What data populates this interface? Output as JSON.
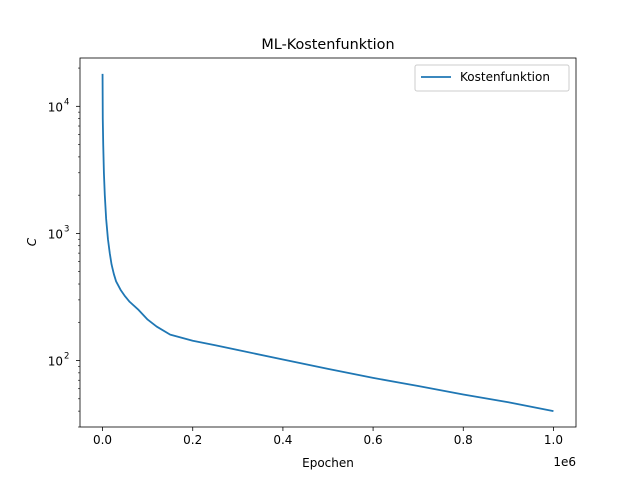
{
  "chart_data": {
    "type": "line",
    "title": "ML-Kostenfunktion",
    "xlabel": "Epochen",
    "ylabel": "C",
    "x_offset_label": "1e6",
    "y_scale": "log",
    "xlim": [
      -50000,
      1050000
    ],
    "ylim": [
      30,
      24000
    ],
    "x_ticks": [
      0,
      200000,
      400000,
      600000,
      800000,
      1000000
    ],
    "x_tick_labels": [
      "0.0",
      "0.2",
      "0.4",
      "0.6",
      "0.8",
      "1.0"
    ],
    "y_ticks": [
      100,
      1000,
      10000
    ],
    "y_tick_labels": [
      "10",
      "10",
      "10"
    ],
    "y_tick_exponents": [
      "2",
      "3",
      "4"
    ],
    "grid": false,
    "legend_position": "top-right",
    "series": [
      {
        "name": "Kostenfunktion",
        "color": "#1f77b4",
        "x": [
          0,
          500,
          1500,
          3000,
          5000,
          8000,
          12000,
          16000,
          20000,
          25000,
          30000,
          40000,
          50000,
          60000,
          80000,
          100000,
          120000,
          150000,
          200000,
          250000,
          300000,
          400000,
          500000,
          600000,
          700000,
          800000,
          900000,
          1000000
        ],
        "y": [
          18000,
          8000,
          5000,
          3000,
          2000,
          1300,
          900,
          700,
          570,
          480,
          420,
          360,
          320,
          290,
          250,
          210,
          185,
          160,
          143,
          132,
          121,
          102,
          86,
          73,
          63,
          54,
          47,
          40
        ]
      }
    ]
  }
}
